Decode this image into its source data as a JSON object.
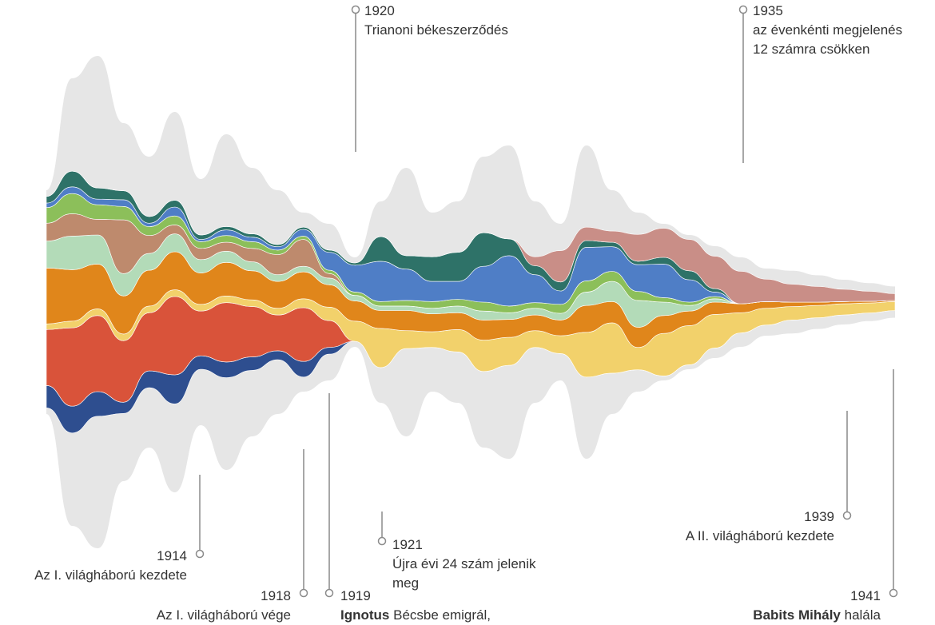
{
  "colors": {
    "background_band": "#e6e6e6",
    "leader_line": "#8a8a8a",
    "text": "#333333"
  },
  "annotations": {
    "a1920": {
      "year": "1920",
      "text": "Trianoni békeszerződés"
    },
    "a1935": {
      "year": "1935",
      "text_line1": "az évenkénti megjelenés",
      "text_line2": "12 számra csökken"
    },
    "a1914": {
      "year": "1914",
      "text": "Az I. világháború kezdete"
    },
    "a1918": {
      "year": "1918",
      "text": "Az I. világháború vége"
    },
    "a1919": {
      "year": "1919",
      "bold": "Ignotus",
      "text": " Bécsbe emigrál,"
    },
    "a1921": {
      "year": "1921",
      "text_line1": "Újra évi 24 szám jelenik",
      "text_line2": "meg"
    },
    "a1939": {
      "year": "1939",
      "text": "A II. világháború kezdete"
    },
    "a1941": {
      "year": "1941",
      "bold": "Babits Mihály",
      "text": " halála"
    }
  },
  "chart_data": {
    "type": "area",
    "x": [
      1908,
      1909,
      1910,
      1911,
      1912,
      1913,
      1914,
      1915,
      1916,
      1917,
      1918,
      1919,
      1920,
      1921,
      1922,
      1923,
      1924,
      1925,
      1926,
      1927,
      1928,
      1929,
      1930,
      1931,
      1932,
      1933,
      1934,
      1935,
      1936,
      1937,
      1938,
      1939,
      1940,
      1941
    ],
    "envelope_total": [
      10,
      20,
      22,
      16,
      13,
      17,
      11,
      15,
      12,
      10,
      8,
      7,
      4,
      9,
      12,
      8,
      9,
      13,
      14,
      9,
      7,
      14,
      10,
      8,
      7,
      6,
      5,
      4,
      3,
      2.8,
      2.4,
      2,
      1.7,
      1.4
    ],
    "series": [
      {
        "color": "#2e4e8f",
        "values": [
          2.0,
          2.4,
          2.2,
          1.0,
          1.5,
          2.6,
          1.2,
          1.4,
          1.2,
          0.8,
          1.4,
          0.6,
          0,
          0,
          0,
          0,
          0,
          0,
          0,
          0,
          0,
          0,
          0,
          0,
          0,
          0,
          0,
          0,
          0,
          0,
          0,
          0,
          0,
          0
        ]
      },
      {
        "color": "#d9533a",
        "values": [
          5.0,
          7.0,
          6.8,
          5.5,
          5.2,
          7.0,
          4.0,
          5.3,
          4.5,
          3.2,
          4.8,
          2.4,
          0,
          0,
          0,
          0,
          0,
          0,
          0,
          0,
          0,
          0,
          0,
          0,
          0,
          0,
          0,
          0,
          0,
          0,
          0,
          0,
          0,
          0
        ]
      },
      {
        "color": "#f2d16b",
        "values": [
          0.5,
          0.6,
          0.6,
          0.6,
          0.6,
          0.6,
          0.6,
          0.6,
          0.6,
          0.6,
          0.8,
          1.2,
          1.8,
          3.5,
          1.6,
          1.4,
          2.0,
          2.8,
          2.5,
          1.5,
          1.6,
          4.0,
          4.5,
          2.0,
          3.8,
          3.5,
          3.0,
          1.8,
          1.5,
          1.2,
          1.1,
          1.0,
          0.9,
          0.8
        ]
      },
      {
        "color": "#e0861b",
        "values": [
          5.0,
          4.6,
          4.0,
          3.4,
          3.2,
          3.4,
          2.8,
          3.0,
          2.6,
          2.4,
          2.4,
          2.0,
          1.8,
          1.6,
          1.8,
          1.6,
          1.5,
          1.8,
          1.6,
          1.4,
          1.4,
          2.4,
          1.9,
          1.8,
          1.6,
          1.3,
          1.1,
          0.8,
          0.6,
          0.4,
          0.3,
          0.2,
          0.15,
          0.1
        ]
      },
      {
        "color": "#b3dbb8",
        "values": [
          2.4,
          3.0,
          2.6,
          2.0,
          1.5,
          1.6,
          1.2,
          1.0,
          0.8,
          0.6,
          0.5,
          0.6,
          0.5,
          0.4,
          0.4,
          0.5,
          0.6,
          0.8,
          0.6,
          0.6,
          0.6,
          1.2,
          1.8,
          2.4,
          1.2,
          0.5,
          0.3,
          0,
          0,
          0,
          0,
          0,
          0,
          0
        ]
      },
      {
        "color": "#be8a6d",
        "values": [
          1.6,
          2.0,
          1.4,
          4.8,
          1.6,
          0.8,
          1.0,
          0.8,
          1.2,
          1.8,
          2.4,
          0.4,
          0,
          0,
          0,
          0,
          0,
          0,
          0,
          0,
          0,
          0,
          0,
          0,
          0,
          0,
          0,
          0,
          0,
          0,
          0,
          0,
          0,
          0
        ]
      },
      {
        "color": "#8cbf5a",
        "values": [
          1.4,
          1.8,
          1.3,
          1.2,
          0.8,
          0.8,
          0.6,
          0.6,
          0.6,
          0.4,
          0.3,
          0.3,
          0.3,
          0.4,
          0.5,
          0.6,
          0.6,
          0.8,
          0.6,
          0.5,
          0.8,
          1.0,
          0.9,
          0.8,
          0.4,
          0.3,
          0.2,
          0,
          0,
          0,
          0,
          0,
          0,
          0
        ]
      },
      {
        "color": "#4f7ec6",
        "values": [
          0.4,
          0.6,
          0.5,
          0.6,
          0.3,
          0.8,
          0.2,
          0.5,
          0.4,
          0.3,
          0.6,
          1.6,
          2.4,
          3.6,
          2.8,
          1.8,
          1.6,
          3.2,
          4.5,
          2.5,
          1.2,
          3.0,
          2.2,
          2.4,
          3.0,
          2.0,
          0.4,
          0,
          0,
          0,
          0,
          0,
          0,
          0
        ]
      },
      {
        "color": "#2e7268",
        "values": [
          0.6,
          1.4,
          1.0,
          0.8,
          0.6,
          0.6,
          0.4,
          0.3,
          0.3,
          0.2,
          0.2,
          0.2,
          0.2,
          2.2,
          1.2,
          2.2,
          2.6,
          3.0,
          1.5,
          0.8,
          0.8,
          0.6,
          0.4,
          0.3,
          0.6,
          0.8,
          0.3,
          0,
          0,
          0,
          0,
          0,
          0,
          0
        ]
      },
      {
        "color": "#c98e87",
        "values": [
          0,
          0,
          0,
          0,
          0,
          0,
          0,
          0,
          0,
          0,
          0,
          0,
          0,
          0,
          0,
          0,
          0,
          0,
          0,
          0.8,
          2.8,
          1.2,
          1.0,
          2.4,
          2.6,
          2.8,
          2.9,
          2.9,
          2.0,
          1.6,
          1.4,
          1.1,
          0.9,
          0.6
        ]
      }
    ]
  }
}
